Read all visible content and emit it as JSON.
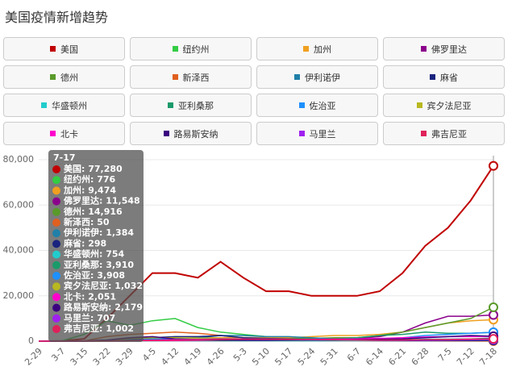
{
  "chart_data": {
    "type": "line",
    "title": "美国疫情新增趋势",
    "categories": [
      "2-29",
      "3-7",
      "3-15",
      "3-22",
      "3-29",
      "4-5",
      "4-12",
      "4-19",
      "4-26",
      "5-3",
      "5-10",
      "5-17",
      "5-24",
      "5-31",
      "6-7",
      "6-14",
      "6-21",
      "6-28",
      "7-5",
      "7-12",
      "7-18"
    ],
    "ylim": [
      0,
      80000
    ],
    "yticks": [
      0,
      {
        "value": 20000,
        "label": "20,000"
      },
      {
        "value": 40000,
        "label": "40,000"
      },
      {
        "value": 60000,
        "label": "60,000"
      },
      {
        "value": 80000,
        "label": "80,000"
      }
    ],
    "grid": true,
    "series": [
      {
        "name": "美国",
        "color": "#c00000",
        "values": [
          0,
          100,
          1000,
          10000,
          20000,
          30000,
          30000,
          28000,
          35000,
          28000,
          22000,
          22000,
          20000,
          20000,
          20000,
          22000,
          30000,
          42000,
          50000,
          62000,
          77280
        ]
      },
      {
        "name": "纽约州",
        "color": "#33cc44",
        "values": [
          0,
          50,
          3000,
          9000,
          7000,
          9000,
          10000,
          6000,
          4000,
          3000,
          2000,
          1500,
          1200,
          1000,
          800,
          600,
          600,
          600,
          600,
          700,
          776
        ]
      },
      {
        "name": "加州",
        "color": "#f0a020",
        "values": [
          0,
          0,
          100,
          500,
          1000,
          1500,
          1200,
          1500,
          1500,
          1600,
          1500,
          1500,
          2000,
          2500,
          2500,
          3000,
          4000,
          6000,
          8000,
          9000,
          9474
        ]
      },
      {
        "name": "佛罗里达",
        "color": "#8b008b",
        "values": [
          0,
          0,
          50,
          200,
          1000,
          1000,
          1000,
          800,
          600,
          700,
          600,
          700,
          800,
          1200,
          1200,
          2000,
          4000,
          8000,
          11000,
          11000,
          11548
        ]
      },
      {
        "name": "德州",
        "color": "#5a9a2a",
        "values": [
          0,
          0,
          20,
          100,
          500,
          700,
          800,
          700,
          800,
          1000,
          1000,
          1000,
          1200,
          1500,
          1500,
          2500,
          4000,
          6000,
          8000,
          10000,
          14916
        ]
      },
      {
        "name": "新泽西",
        "color": "#e06020",
        "values": [
          0,
          0,
          100,
          2000,
          3000,
          3500,
          4000,
          3500,
          2500,
          1500,
          1000,
          800,
          500,
          300,
          300,
          200,
          200,
          200,
          100,
          100,
          50
        ]
      },
      {
        "name": "伊利诺伊",
        "color": "#2080a8",
        "values": [
          0,
          0,
          20,
          200,
          800,
          1000,
          1200,
          1500,
          2500,
          2500,
          2000,
          2000,
          1500,
          1000,
          700,
          600,
          600,
          800,
          900,
          1000,
          1384
        ]
      },
      {
        "name": "麻省",
        "color": "#1a237e",
        "values": [
          0,
          0,
          50,
          300,
          800,
          1500,
          2000,
          2000,
          2500,
          1500,
          1200,
          1000,
          800,
          500,
          400,
          300,
          200,
          200,
          200,
          200,
          298
        ]
      },
      {
        "name": "华盛顿州",
        "color": "#22cccc",
        "values": [
          0,
          10,
          100,
          300,
          400,
          400,
          300,
          200,
          200,
          200,
          200,
          200,
          200,
          300,
          300,
          400,
          400,
          500,
          600,
          700,
          754
        ]
      },
      {
        "name": "亚利桑那",
        "color": "#1a9a6a",
        "values": [
          0,
          0,
          10,
          50,
          200,
          200,
          300,
          300,
          300,
          400,
          400,
          400,
          600,
          1000,
          1500,
          2500,
          3000,
          4000,
          3500,
          3500,
          3910
        ]
      },
      {
        "name": "佐治亚",
        "color": "#1e90ff",
        "values": [
          0,
          0,
          50,
          200,
          600,
          800,
          1000,
          700,
          700,
          800,
          700,
          600,
          700,
          700,
          800,
          1000,
          1500,
          2500,
          3000,
          3500,
          3908
        ]
      },
      {
        "name": "宾夕法尼亚",
        "color": "#b8b820",
        "values": [
          0,
          0,
          50,
          300,
          1200,
          1500,
          1500,
          1300,
          1200,
          1000,
          900,
          700,
          600,
          500,
          500,
          500,
          500,
          600,
          700,
          900,
          1032
        ]
      },
      {
        "name": "北卡",
        "color": "#ff00cc",
        "values": [
          0,
          0,
          20,
          100,
          200,
          300,
          300,
          400,
          500,
          500,
          600,
          700,
          800,
          900,
          1000,
          1200,
          1500,
          1800,
          2000,
          2000,
          2051
        ]
      },
      {
        "name": "路易斯安纳",
        "color": "#3a0080",
        "values": [
          0,
          0,
          50,
          500,
          1500,
          2000,
          1000,
          700,
          500,
          400,
          400,
          500,
          500,
          500,
          600,
          800,
          1000,
          1500,
          2000,
          2500,
          2179
        ]
      },
      {
        "name": "马里兰",
        "color": "#a020f0",
        "values": [
          0,
          0,
          20,
          100,
          300,
          500,
          700,
          800,
          1000,
          1000,
          900,
          800,
          700,
          600,
          500,
          400,
          400,
          400,
          500,
          600,
          707
        ]
      },
      {
        "name": "弗吉尼亚",
        "color": "#e0205a",
        "values": [
          0,
          0,
          20,
          100,
          300,
          400,
          500,
          600,
          800,
          900,
          900,
          800,
          700,
          600,
          500,
          500,
          500,
          600,
          700,
          900,
          1002
        ]
      }
    ],
    "tooltip": {
      "title": "7-17",
      "items": [
        "美国: 77,280",
        "纽约州: 776",
        "加州: 9,474",
        "佛罗里达: 11,548",
        "德州: 14,916",
        "新泽西: 50",
        "伊利诺伊: 1,384",
        "麻省: 298",
        "华盛顿州: 754",
        "亚利桑那: 3,910",
        "佐治亚: 3,908",
        "宾夕法尼亚: 1,032",
        "北卡: 2,051",
        "路易斯安纳: 2,179",
        "马里兰: 707",
        "弗吉尼亚: 1,002"
      ]
    }
  }
}
